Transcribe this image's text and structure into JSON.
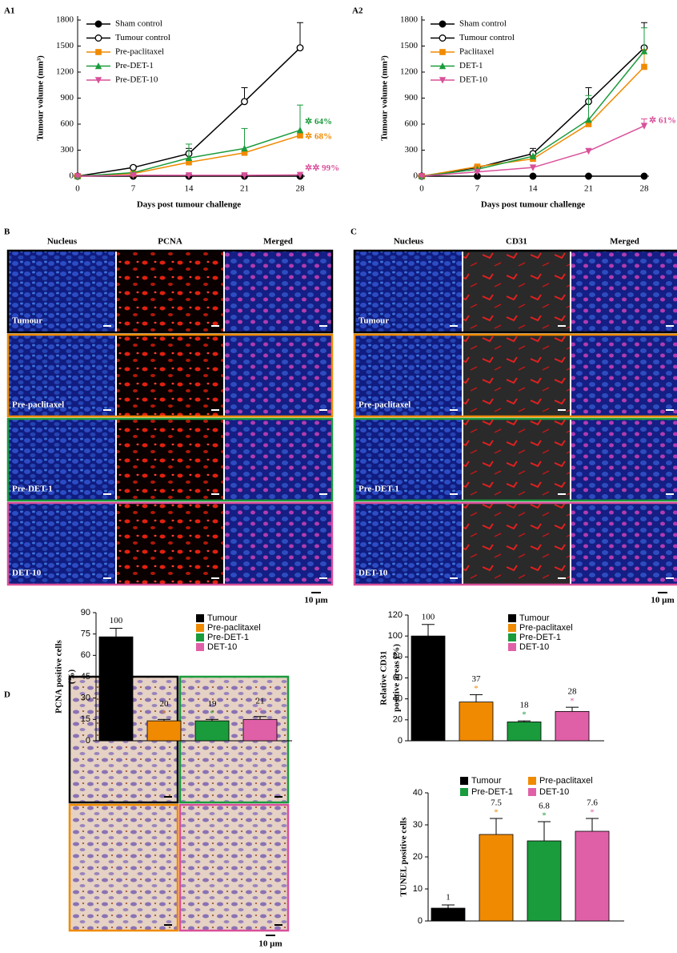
{
  "micrographs": {
    "B": {
      "panel": "B",
      "columns": [
        "Nucleus",
        "PCNA",
        "Merged"
      ],
      "rows": [
        "Tumour",
        "Pre-paclitaxel",
        "Pre-DET-1",
        "DET-10"
      ],
      "row_colors": [
        "#000000",
        "#f08a00",
        "#1a9b3c",
        "#d9509a"
      ],
      "scale_bar": "10 µm"
    },
    "C": {
      "panel": "C",
      "columns": [
        "Nucleus",
        "CD31",
        "Merged"
      ],
      "rows": [
        "Tumour",
        "Pre-paclitaxel",
        "Pre-DET-1",
        "DET-10"
      ],
      "row_colors": [
        "#000000",
        "#f08a00",
        "#1a9b3c",
        "#d9509a"
      ],
      "scale_bar": "10 µm"
    },
    "D": {
      "panel": "D",
      "frame_colors": [
        "#000000",
        "#1a9b3c",
        "#f08a00",
        "#d9509a"
      ],
      "scale_bar": "10 µm"
    }
  },
  "chart_data": [
    {
      "type": "line",
      "panel": "A1",
      "xlabel": "Days post tumour challenge",
      "ylabel": "Tumour volume (mm³)",
      "x": [
        0,
        7,
        14,
        21,
        28
      ],
      "xlim": [
        0,
        28
      ],
      "xticks": [
        0,
        7,
        14,
        21,
        28
      ],
      "ylim": [
        0,
        1800
      ],
      "yticks": [
        0,
        300,
        600,
        900,
        1200,
        1500,
        1800
      ],
      "series": [
        {
          "name": "Sham control",
          "color": "#000000",
          "marker": "filled-circle",
          "values": [
            0,
            0,
            0,
            0,
            0
          ]
        },
        {
          "name": "Tumour control",
          "color": "#000000",
          "marker": "open-circle",
          "values": [
            0,
            100,
            260,
            860,
            1480
          ],
          "errors": [
            null,
            20,
            60,
            160,
            290
          ]
        },
        {
          "name": "Pre-paclitaxel",
          "color": "#f08a00",
          "marker": "square",
          "values": [
            0,
            30,
            160,
            270,
            470
          ],
          "annotation": "✲ 68%"
        },
        {
          "name": "Pre-DET-1",
          "color": "#1a9b3c",
          "marker": "triangle",
          "values": [
            0,
            40,
            210,
            320,
            530
          ],
          "errors": [
            null,
            null,
            160,
            230,
            290
          ],
          "annotation": "✲ 64%"
        },
        {
          "name": "Pre-DET-10",
          "color": "#d9509a",
          "marker": "triangle-down",
          "values": [
            0,
            10,
            10,
            10,
            15
          ],
          "annotation": "✲✲ 99%"
        }
      ]
    },
    {
      "type": "line",
      "panel": "A2",
      "xlabel": "Days post tumour challenge",
      "ylabel": "Tumour volume (mm³)",
      "x": [
        0,
        7,
        14,
        21,
        28
      ],
      "xlim": [
        0,
        28
      ],
      "xticks": [
        0,
        7,
        14,
        21,
        28
      ],
      "ylim": [
        0,
        1800
      ],
      "yticks": [
        0,
        300,
        600,
        900,
        1200,
        1500,
        1800
      ],
      "series": [
        {
          "name": "Sham control",
          "color": "#000000",
          "marker": "filled-circle",
          "values": [
            0,
            0,
            0,
            0,
            0
          ]
        },
        {
          "name": "Tumour control",
          "color": "#000000",
          "marker": "open-circle",
          "values": [
            0,
            100,
            260,
            860,
            1480
          ],
          "errors": [
            null,
            20,
            60,
            160,
            290
          ]
        },
        {
          "name": "Paclitaxel",
          "color": "#f08a00",
          "marker": "square",
          "values": [
            0,
            110,
            200,
            600,
            1260
          ],
          "errors": [
            null,
            null,
            null,
            null,
            200
          ]
        },
        {
          "name": "DET-1",
          "color": "#1a9b3c",
          "marker": "triangle",
          "values": [
            0,
            80,
            230,
            650,
            1440
          ],
          "errors": [
            null,
            null,
            null,
            280,
            270
          ]
        },
        {
          "name": "DET-10",
          "color": "#d9509a",
          "marker": "triangle-down",
          "values": [
            0,
            50,
            100,
            290,
            580
          ],
          "errors": [
            null,
            null,
            null,
            null,
            80
          ],
          "annotation": "✲ 61%"
        }
      ]
    },
    {
      "type": "bar",
      "ylabel": [
        "PCNA positive cells",
        "(%)"
      ],
      "categories": [
        "Tumour",
        "Pre-paclitaxel",
        "Pre-DET-1",
        "DET-10"
      ],
      "colors": [
        "#000000",
        "#f08a00",
        "#1a9b3c",
        "#e060a8"
      ],
      "values": [
        73,
        14,
        14,
        15
      ],
      "errors": [
        6,
        1,
        1,
        2
      ],
      "bar_annotations": [
        "100",
        "20",
        "19",
        "21"
      ],
      "significance": [
        null,
        "*",
        "*",
        "*"
      ],
      "ylim": [
        0,
        90
      ],
      "yticks": [
        0,
        15,
        30,
        45,
        60,
        75,
        90
      ],
      "legend_columns": 1
    },
    {
      "type": "bar",
      "ylabel": [
        "Relative CD31",
        "positive areas (%)"
      ],
      "categories": [
        "Tumour",
        "Pre-paclitaxel",
        "Pre-DET-1",
        "DET-10"
      ],
      "colors": [
        "#000000",
        "#f08a00",
        "#1a9b3c",
        "#e060a8"
      ],
      "values": [
        100,
        37,
        18,
        28
      ],
      "errors": [
        11,
        7,
        1,
        4
      ],
      "show_values": true,
      "significance": [
        null,
        "*",
        "*",
        "*"
      ],
      "ylim": [
        0,
        120
      ],
      "yticks": [
        0,
        20,
        40,
        60,
        80,
        100,
        120
      ],
      "legend_columns": 1
    },
    {
      "type": "bar",
      "ylabel": [
        "TUNEL positive cells"
      ],
      "categories": [
        "Tumour",
        "Pre-paclitaxel",
        "Pre-DET-1",
        "DET-10"
      ],
      "colors": [
        "#000000",
        "#f08a00",
        "#1a9b3c",
        "#e060a8"
      ],
      "values": [
        4,
        27,
        25,
        28
      ],
      "errors": [
        1,
        5,
        6,
        4
      ],
      "bar_annotations": [
        "1",
        "7.5",
        "6.8",
        "7.6"
      ],
      "significance": [
        null,
        "*",
        "*",
        "*"
      ],
      "ylim": [
        0,
        40
      ],
      "yticks": [
        0,
        10,
        20,
        30,
        40
      ],
      "legend_columns": 2
    }
  ]
}
